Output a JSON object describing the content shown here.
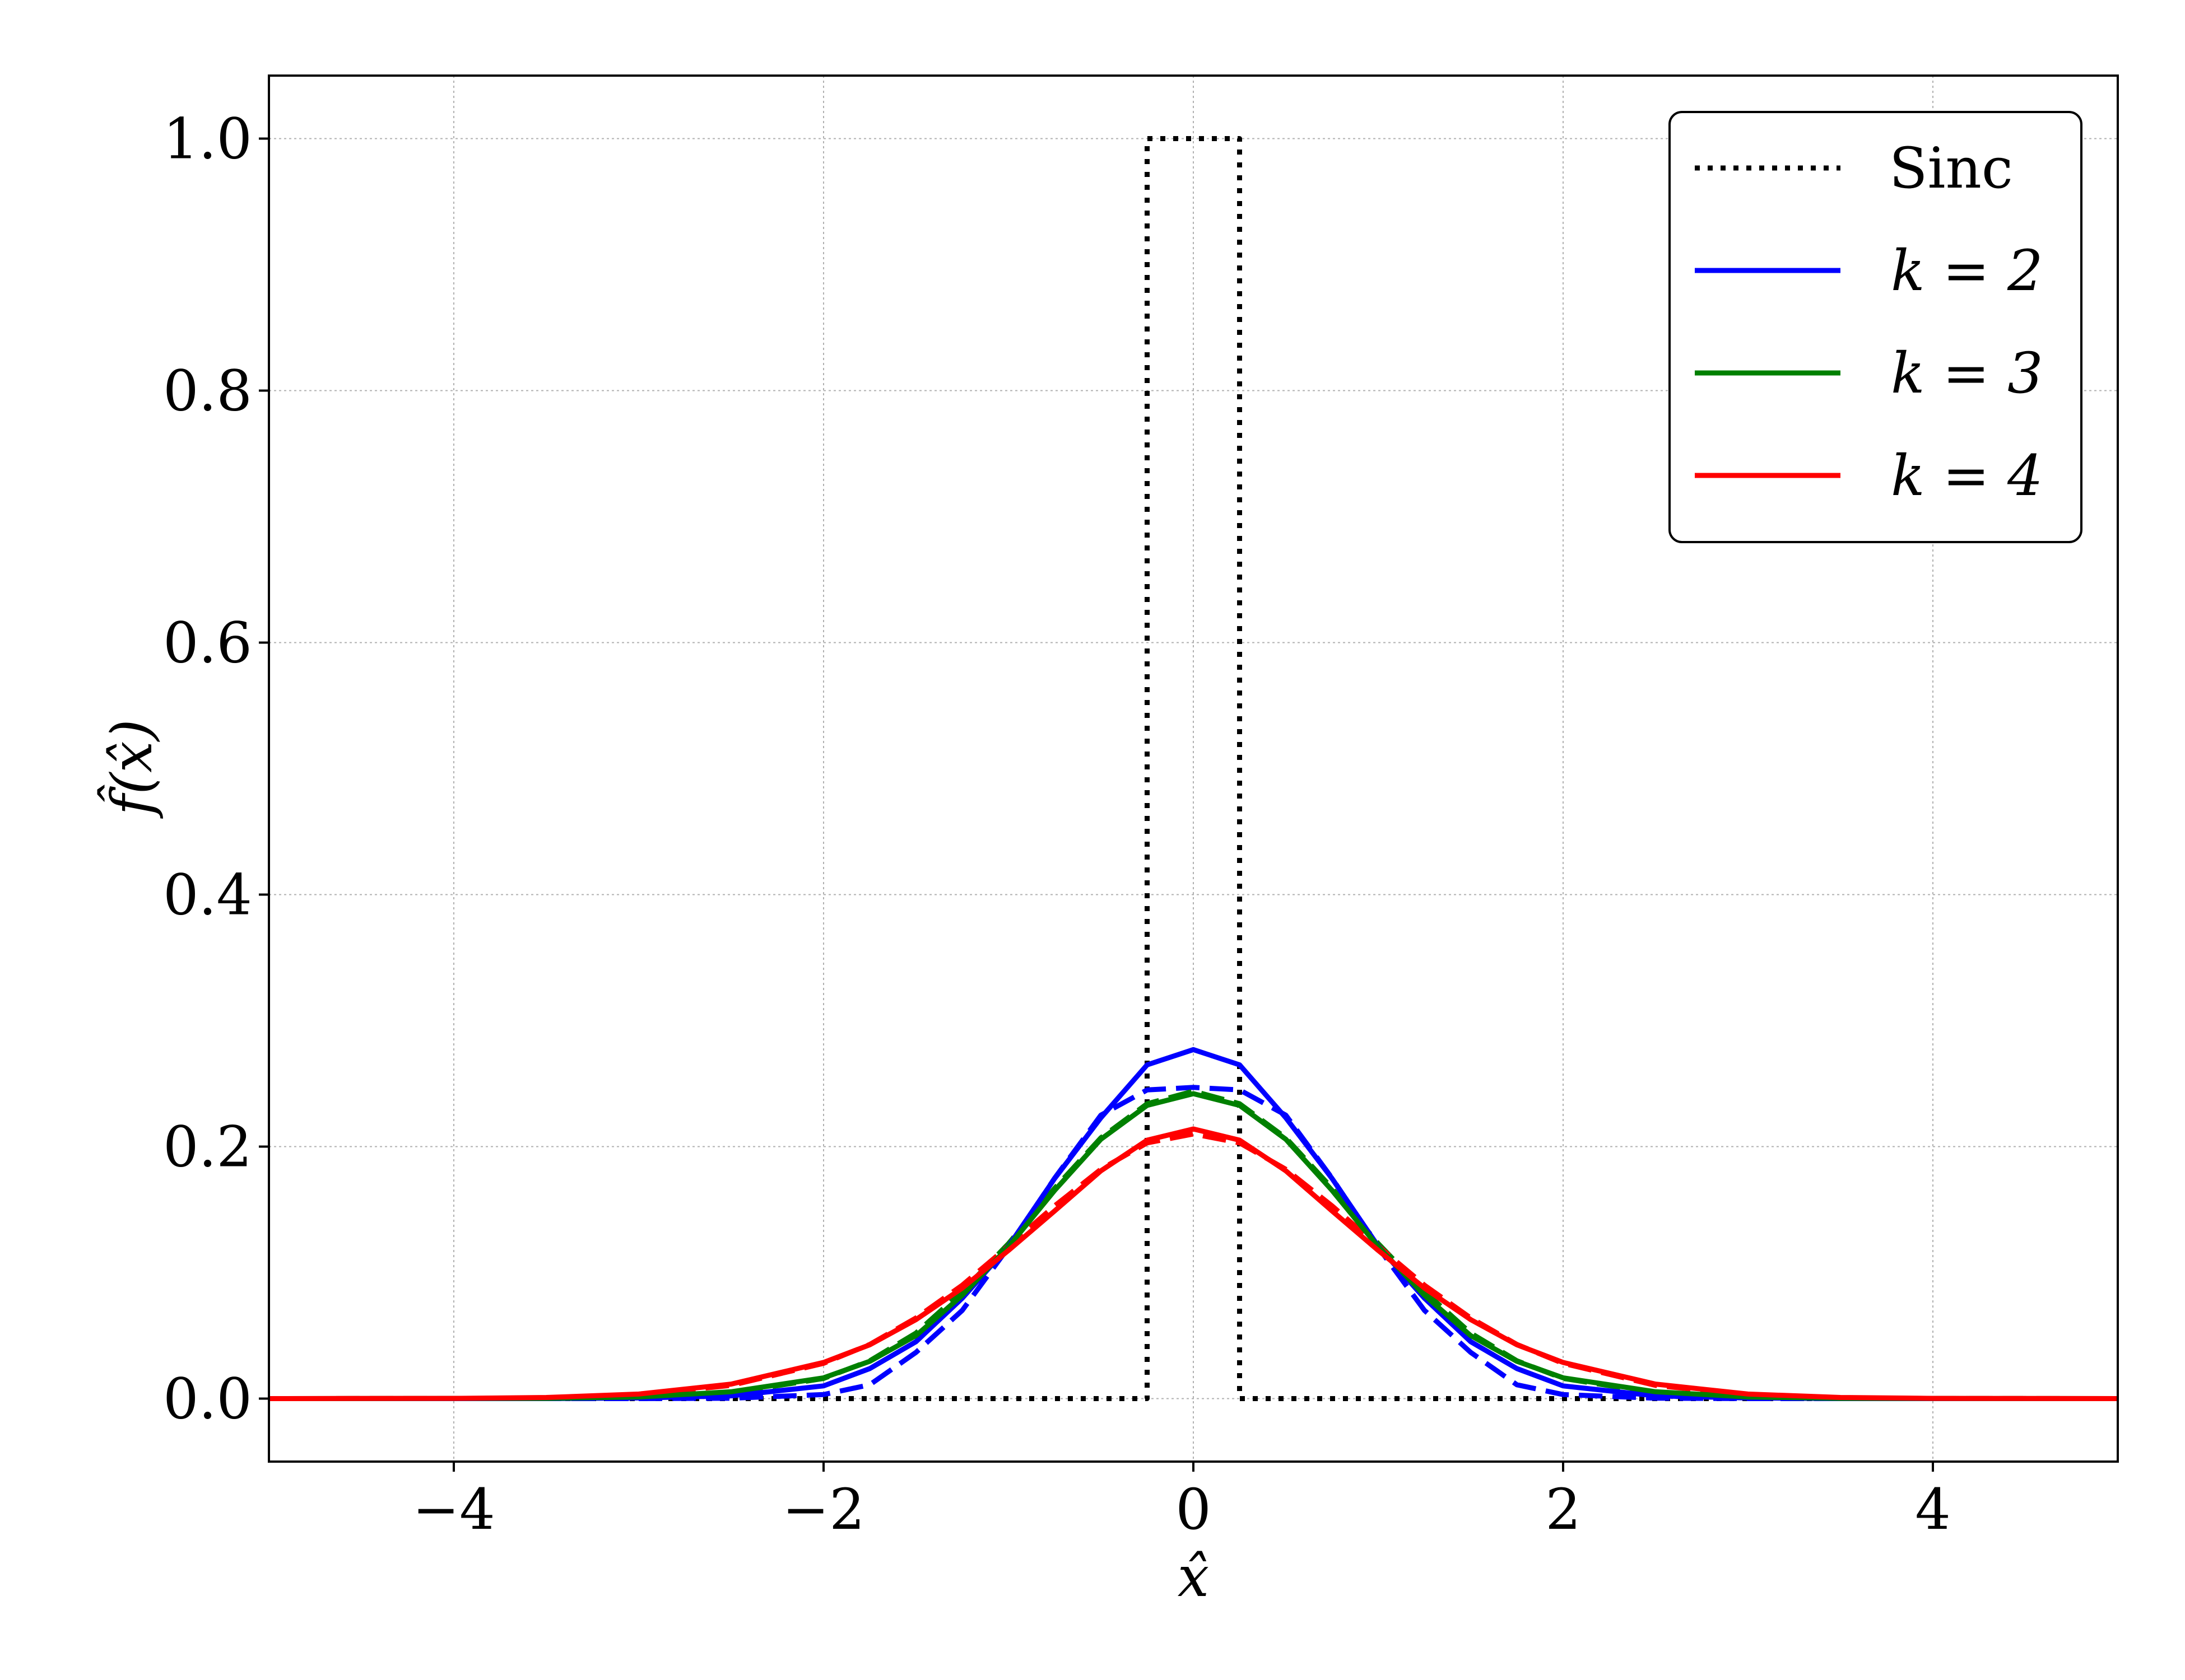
{
  "chart_data": {
    "type": "line",
    "xlabel": "x̂",
    "ylabel": "f̂(x̂)",
    "xlim": [
      -5,
      5
    ],
    "ylim": [
      -0.05,
      1.05
    ],
    "xticks": [
      -4,
      -2,
      0,
      2,
      4
    ],
    "xtick_labels": [
      "−4",
      "−2",
      "0",
      "2",
      "4"
    ],
    "yticks": [
      0.0,
      0.2,
      0.4,
      0.6,
      0.8,
      1.0
    ],
    "ytick_labels": [
      "0.0",
      "0.2",
      "0.4",
      "0.6",
      "0.8",
      "1.0"
    ],
    "grid": true,
    "legend_position": "top-right",
    "series": [
      {
        "name": "Sinc",
        "color": "#000000",
        "style": "dotted",
        "points": [
          [
            -5,
            0
          ],
          [
            -0.25,
            0
          ],
          [
            -0.25,
            1.0
          ],
          [
            0.25,
            1.0
          ],
          [
            0.25,
            0
          ],
          [
            5,
            0
          ]
        ]
      },
      {
        "name": "k = 2",
        "color": "#0000ff",
        "style": "solid",
        "points": [
          [
            -3.5,
            0.0
          ],
          [
            -3.0,
            0.0005
          ],
          [
            -2.5,
            0.0022
          ],
          [
            -2.0,
            0.0101
          ],
          [
            -1.75,
            0.0238
          ],
          [
            -1.5,
            0.0452
          ],
          [
            -1.25,
            0.0797
          ],
          [
            -1.0,
            0.1209
          ],
          [
            -0.75,
            0.1747
          ],
          [
            -0.5,
            0.2229
          ],
          [
            -0.25,
            0.2649
          ],
          [
            0.0,
            0.277
          ],
          [
            0.25,
            0.2649
          ],
          [
            0.5,
            0.2229
          ],
          [
            0.75,
            0.1747
          ],
          [
            1.0,
            0.1209
          ],
          [
            1.25,
            0.0797
          ],
          [
            1.5,
            0.0452
          ],
          [
            1.75,
            0.0238
          ],
          [
            2.0,
            0.0101
          ],
          [
            2.5,
            0.0022
          ],
          [
            3.0,
            0.0005
          ],
          [
            3.5,
            0.0
          ]
        ]
      },
      {
        "name": "",
        "color": "#0000ff",
        "style": "dashed",
        "points": [
          [
            -3.5,
            0.0
          ],
          [
            -3.0,
            0.0
          ],
          [
            -2.5,
            0.0003
          ],
          [
            -2.0,
            0.0032
          ],
          [
            -1.75,
            0.011
          ],
          [
            -1.5,
            0.0367
          ],
          [
            -1.25,
            0.07
          ],
          [
            -1.0,
            0.12
          ],
          [
            -0.75,
            0.175
          ],
          [
            -0.5,
            0.225
          ],
          [
            -0.25,
            0.245
          ],
          [
            0.0,
            0.247
          ],
          [
            0.25,
            0.245
          ],
          [
            0.5,
            0.225
          ],
          [
            0.75,
            0.175
          ],
          [
            1.0,
            0.12
          ],
          [
            1.25,
            0.07
          ],
          [
            1.5,
            0.0367
          ],
          [
            1.75,
            0.011
          ],
          [
            2.0,
            0.0032
          ],
          [
            2.5,
            0.0003
          ],
          [
            3.0,
            0.0
          ],
          [
            3.5,
            0.0
          ]
        ]
      },
      {
        "name": "k = 3",
        "color": "#008000",
        "style": "solid",
        "points": [
          [
            -3.5,
            0.0002
          ],
          [
            -3.0,
            0.0013
          ],
          [
            -2.5,
            0.0054
          ],
          [
            -2.0,
            0.0165
          ],
          [
            -1.75,
            0.0296
          ],
          [
            -1.5,
            0.05
          ],
          [
            -1.25,
            0.082
          ],
          [
            -1.0,
            0.1205
          ],
          [
            -0.75,
            0.1653
          ],
          [
            -0.5,
            0.2058
          ],
          [
            -0.25,
            0.2327
          ],
          [
            0.0,
            0.242
          ],
          [
            0.25,
            0.2327
          ],
          [
            0.5,
            0.2058
          ],
          [
            0.75,
            0.1653
          ],
          [
            1.0,
            0.1205
          ],
          [
            1.25,
            0.082
          ],
          [
            1.5,
            0.05
          ],
          [
            1.75,
            0.0296
          ],
          [
            2.0,
            0.0165
          ],
          [
            2.5,
            0.0054
          ],
          [
            3.0,
            0.0013
          ],
          [
            3.5,
            0.0002
          ]
        ]
      },
      {
        "name": "",
        "color": "#008000",
        "style": "dashed",
        "points": [
          [
            -3.5,
            0.0001
          ],
          [
            -3.0,
            0.0009
          ],
          [
            -2.5,
            0.0045
          ],
          [
            -2.0,
            0.016
          ],
          [
            -1.75,
            0.03
          ],
          [
            -1.5,
            0.052
          ],
          [
            -1.25,
            0.085
          ],
          [
            -1.0,
            0.123
          ],
          [
            -0.75,
            0.167
          ],
          [
            -0.5,
            0.207
          ],
          [
            -0.25,
            0.234
          ],
          [
            0.0,
            0.244
          ],
          [
            0.25,
            0.234
          ],
          [
            0.5,
            0.207
          ],
          [
            0.75,
            0.167
          ],
          [
            1.0,
            0.123
          ],
          [
            1.25,
            0.085
          ],
          [
            1.5,
            0.052
          ],
          [
            1.75,
            0.03
          ],
          [
            2.0,
            0.016
          ],
          [
            2.5,
            0.0045
          ],
          [
            3.0,
            0.0009
          ],
          [
            3.5,
            0.0001
          ]
        ]
      },
      {
        "name": "k = 4",
        "color": "#ff0000",
        "style": "solid",
        "points": [
          [
            -4.0,
            0.0002
          ],
          [
            -3.5,
            0.0009
          ],
          [
            -3.0,
            0.0036
          ],
          [
            -2.5,
            0.0115
          ],
          [
            -2.0,
            0.0287
          ],
          [
            -1.75,
            0.0427
          ],
          [
            -1.5,
            0.0627
          ],
          [
            -1.25,
            0.0877
          ],
          [
            -1.0,
            0.1176
          ],
          [
            -0.75,
            0.149
          ],
          [
            -0.5,
            0.1808
          ],
          [
            -0.25,
            0.2051
          ],
          [
            0.0,
            0.214
          ],
          [
            0.25,
            0.2051
          ],
          [
            0.5,
            0.1808
          ],
          [
            0.75,
            0.149
          ],
          [
            1.0,
            0.1176
          ],
          [
            1.25,
            0.0877
          ],
          [
            1.5,
            0.0627
          ],
          [
            1.75,
            0.0427
          ],
          [
            2.0,
            0.0287
          ],
          [
            2.5,
            0.0115
          ],
          [
            3.0,
            0.0036
          ],
          [
            3.5,
            0.0009
          ],
          [
            4.0,
            0.0002
          ]
        ]
      },
      {
        "name": "",
        "color": "#ff0000",
        "style": "dashed",
        "points": [
          [
            -4.0,
            0.0001
          ],
          [
            -3.5,
            0.0006
          ],
          [
            -3.0,
            0.003
          ],
          [
            -2.5,
            0.0105
          ],
          [
            -2.0,
            0.028
          ],
          [
            -1.75,
            0.043
          ],
          [
            -1.5,
            0.064
          ],
          [
            -1.25,
            0.09
          ],
          [
            -1.0,
            0.121
          ],
          [
            -0.75,
            0.153
          ],
          [
            -0.5,
            0.182
          ],
          [
            -0.25,
            0.203
          ],
          [
            0.0,
            0.21
          ],
          [
            0.25,
            0.203
          ],
          [
            0.5,
            0.182
          ],
          [
            0.75,
            0.153
          ],
          [
            1.0,
            0.121
          ],
          [
            1.25,
            0.09
          ],
          [
            1.5,
            0.064
          ],
          [
            1.75,
            0.043
          ],
          [
            2.0,
            0.028
          ],
          [
            2.5,
            0.0105
          ],
          [
            3.0,
            0.003
          ],
          [
            3.5,
            0.0006
          ],
          [
            4.0,
            0.0001
          ]
        ]
      }
    ]
  }
}
